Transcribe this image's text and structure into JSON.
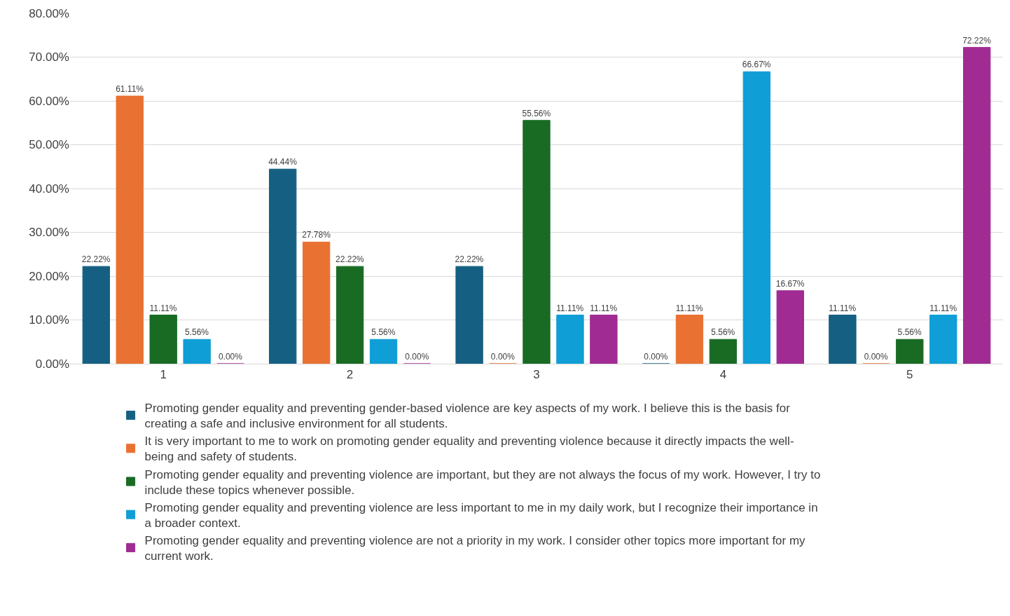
{
  "chart_data": {
    "type": "bar",
    "categories": [
      "1",
      "2",
      "3",
      "4",
      "5"
    ],
    "series": [
      {
        "name": "Promoting gender equality and preventing gender-based violence are key aspects of my work. I believe this is the basis for creating a safe and inclusive environment for all students.",
        "color": "#156082",
        "values": [
          22.22,
          44.44,
          22.22,
          0.0,
          11.11
        ],
        "value_labels": [
          "22.22%",
          "44.44%",
          "22.22%",
          "0.00%",
          "11.11%"
        ]
      },
      {
        "name": "It is very important to me to work on promoting gender equality and preventing violence because it directly impacts the well-being and safety of students.",
        "color": "#e97132",
        "values": [
          61.11,
          27.78,
          0.0,
          11.11,
          0.0
        ],
        "value_labels": [
          "61.11%",
          "27.78%",
          "0.00%",
          "11.11%",
          "0.00%"
        ]
      },
      {
        "name": "Promoting gender equality and preventing violence are important, but they are not always the focus of my work. However, I try to include these topics whenever possible.",
        "color": "#196b24",
        "values": [
          11.11,
          22.22,
          55.56,
          5.56,
          5.56
        ],
        "value_labels": [
          "11.11%",
          "22.22%",
          "55.56%",
          "5.56%",
          "5.56%"
        ]
      },
      {
        "name": "Promoting gender equality and preventing violence are less important to me in my daily work, but I recognize their importance in a broader context.",
        "color": "#0f9ed5",
        "values": [
          5.56,
          5.56,
          11.11,
          66.67,
          11.11
        ],
        "value_labels": [
          "5.56%",
          "5.56%",
          "11.11%",
          "66.67%",
          "11.11%"
        ]
      },
      {
        "name": "Promoting gender equality and preventing violence are not a priority in my work. I consider other topics more important for my current work.",
        "color": "#a02b93",
        "values": [
          0.0,
          0.0,
          11.11,
          16.67,
          72.22
        ],
        "value_labels": [
          "0.00%",
          "0.00%",
          "11.11%",
          "16.67%",
          "72.22%"
        ]
      }
    ],
    "ylim": [
      0,
      80
    ],
    "yticks": [
      {
        "value": 0,
        "label": "0.00%"
      },
      {
        "value": 10,
        "label": "10.00%"
      },
      {
        "value": 20,
        "label": "20.00%"
      },
      {
        "value": 30,
        "label": "30.00%"
      },
      {
        "value": 40,
        "label": "40.00%"
      },
      {
        "value": 50,
        "label": "50.00%"
      },
      {
        "value": 60,
        "label": "60.00%"
      },
      {
        "value": 70,
        "label": "70.00%"
      },
      {
        "value": 80,
        "label": "80.00%"
      }
    ],
    "grid": "y",
    "legend": "bottom"
  }
}
